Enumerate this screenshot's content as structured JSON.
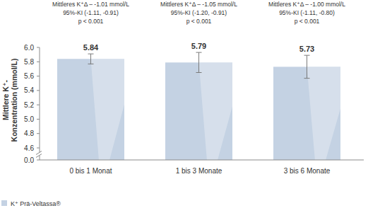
{
  "chart_data": {
    "type": "bar",
    "categories": [
      "0 bis 1 Monat",
      "1 bis 3 Monate",
      "3 bis 6 Monate"
    ],
    "series": [
      {
        "name": "K⁺ Prä-Veltassa®",
        "color": "#c4d2e3",
        "values": [
          5.84,
          5.79,
          5.73
        ],
        "errors": [
          0.07,
          0.14,
          0.16
        ]
      }
    ],
    "annotations": [
      [
        "Mittleres K⁺Δ – -1.01 mmol/L",
        "95%-KI (-1.11, -0.91)",
        "p < 0.001"
      ],
      [
        "Mittleres K⁺Δ – -1.05 mmol/L",
        "95%-KI (-1.20, -0.91)",
        "p < 0.001"
      ],
      [
        "Mittleres K⁺Δ – -1.00 mmol/L",
        "95%-KI (-1.11, -0.80)",
        "p < 0.001"
      ]
    ],
    "y_label": [
      "Mittlere K⁺-",
      "Konzentration (mmol/L)"
    ],
    "ylim": [
      0,
      6.0
    ],
    "yticks": [
      {
        "value": 0,
        "label": "0.0"
      },
      4.6,
      4.8,
      {
        "value": 5,
        "label": "5.0"
      },
      5.2,
      5.4,
      5.6,
      5.8,
      {
        "value": 6,
        "label": "6.0"
      }
    ],
    "data_labels": true,
    "grid": false,
    "legend": "bottom-left"
  }
}
